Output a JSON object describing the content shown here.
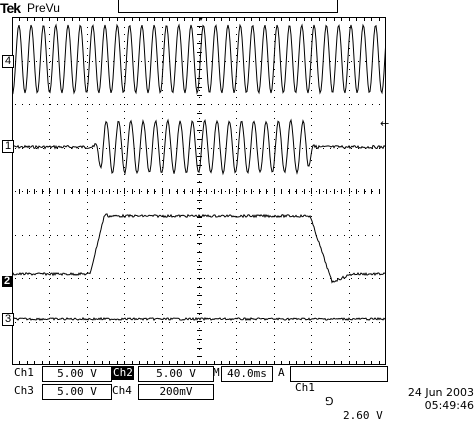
{
  "header": {
    "brand": "Tek",
    "mode": "PreVu"
  },
  "channels": [
    {
      "marker": "4",
      "style": "outline"
    },
    {
      "marker": "1",
      "style": "outline"
    },
    {
      "marker": "2",
      "style": "filled"
    },
    {
      "marker": "3",
      "style": "outline"
    }
  ],
  "status": {
    "ch1_label": "Ch1",
    "ch1_scale": "5.00 V",
    "ch2_label": "Ch2",
    "ch2_scale": "5.00 V",
    "ch3_label": "Ch3",
    "ch3_scale": "5.00 V",
    "ch4_label": "Ch4",
    "ch4_scale": "200mV",
    "timebase_prefix": "M",
    "timebase": "40.0ms",
    "trigger_mode": "A",
    "trigger_source": "Ch1",
    "trigger_slope": "⅁",
    "trigger_level": "2.60 V"
  },
  "timestamp": {
    "date": "24 Jun  2003",
    "time": "05:49:46"
  },
  "colors": {
    "trace": "#000000",
    "background": "#ffffff"
  }
}
